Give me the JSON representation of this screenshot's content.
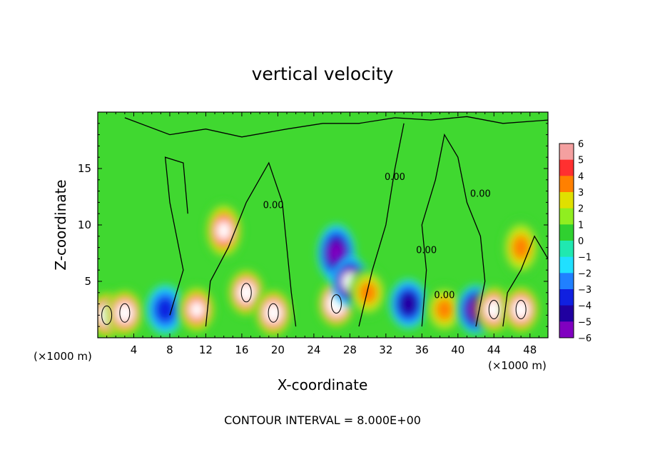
{
  "chart_data": {
    "type": "heatmap",
    "title": "vertical velocity",
    "xlabel": "X-coordinate",
    "ylabel": "Z-coordinate",
    "x_units_left": "(×1000 m)",
    "x_units_right": "(×1000 m)",
    "footer": "CONTOUR INTERVAL = 8.000E+00",
    "xlim": [
      0,
      50
    ],
    "ylim": [
      0,
      20
    ],
    "xticks": [
      "4",
      "8",
      "12",
      "16",
      "20",
      "24",
      "28",
      "32",
      "36",
      "40",
      "44",
      "48"
    ],
    "yticks": [
      "5",
      "10",
      "15"
    ],
    "colorbar": {
      "ticks": [
        "6",
        "5",
        "4",
        "3",
        "2",
        "1",
        "0",
        "−1",
        "−2",
        "−3",
        "−4",
        "−5",
        "−6"
      ],
      "range": [
        -6,
        6
      ],
      "colors": [
        "#f4a0a0",
        "#ff3030",
        "#ff8000",
        "#e0e000",
        "#90ee20",
        "#30d030",
        "#20e8b0",
        "#20e0ff",
        "#2080ff",
        "#1020e0",
        "#2000a0",
        "#8000c0"
      ]
    },
    "contour_label": "0.00",
    "features": [
      {
        "x": 1,
        "z": 2,
        "w": 6.5
      },
      {
        "x": 3,
        "z": 2.2,
        "w": 7
      },
      {
        "x": 7.5,
        "z": 2.5,
        "w": -3
      },
      {
        "x": 11,
        "z": 2.5,
        "w": 6
      },
      {
        "x": 14,
        "z": 9.5,
        "w": 5.5
      },
      {
        "x": 16.5,
        "z": 4,
        "w": 7
      },
      {
        "x": 19.5,
        "z": 2.2,
        "w": 7
      },
      {
        "x": 26.5,
        "z": 3,
        "w": 8
      },
      {
        "x": 26.5,
        "z": 7.5,
        "w": -5
      },
      {
        "x": 28,
        "z": 5,
        "w": -5.5
      },
      {
        "x": 30,
        "z": 4,
        "w": 4
      },
      {
        "x": 34.5,
        "z": 3,
        "w": -4
      },
      {
        "x": 38.5,
        "z": 2.5,
        "w": 3.5
      },
      {
        "x": 42,
        "z": 2.5,
        "w": -5
      },
      {
        "x": 44,
        "z": 2.5,
        "w": 7
      },
      {
        "x": 47,
        "z": 2.5,
        "w": 7
      },
      {
        "x": 47,
        "z": 8,
        "w": 4
      }
    ]
  }
}
